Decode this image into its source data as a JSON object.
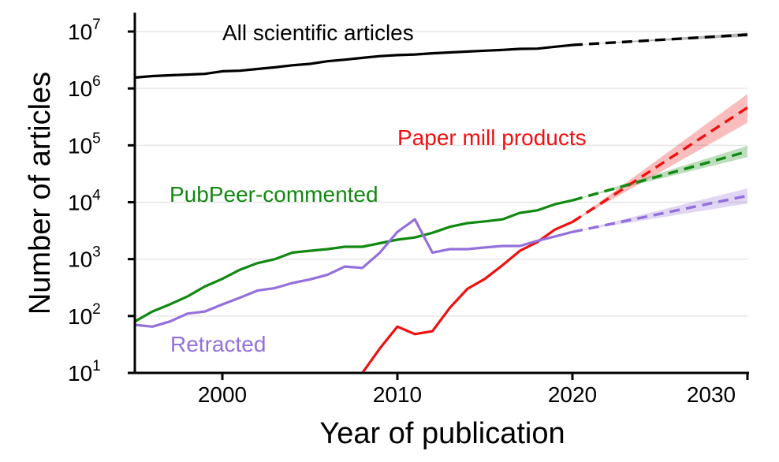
{
  "chart_data": {
    "type": "line",
    "xlabel": "Year of publication",
    "ylabel": "Number of articles",
    "xlim": [
      1995,
      2030
    ],
    "ylim_log10": [
      1,
      7
    ],
    "y_scale": "log",
    "x_ticks": [
      2000,
      2010,
      2020,
      2030
    ],
    "y_ticks": [
      {
        "value": 10,
        "base": "10",
        "exp": "1"
      },
      {
        "value": 100,
        "base": "10",
        "exp": "2"
      },
      {
        "value": 1000,
        "base": "10",
        "exp": "3"
      },
      {
        "value": 10000,
        "base": "10",
        "exp": "4"
      },
      {
        "value": 100000,
        "base": "10",
        "exp": "5"
      },
      {
        "value": 1000000,
        "base": "10",
        "exp": "6"
      },
      {
        "value": 10000000,
        "base": "10",
        "exp": "7"
      }
    ],
    "grid": "horizontal",
    "series": [
      {
        "name": "All scientific articles",
        "color": "#000000",
        "x": [
          1995,
          1996,
          1997,
          1998,
          1999,
          2000,
          2001,
          2002,
          2003,
          2004,
          2005,
          2006,
          2007,
          2008,
          2009,
          2010,
          2011,
          2012,
          2013,
          2014,
          2015,
          2016,
          2017,
          2018,
          2019,
          2020
        ],
        "y": [
          1550000,
          1650000,
          1700000,
          1750000,
          1800000,
          2000000,
          2050000,
          2200000,
          2350000,
          2550000,
          2700000,
          3000000,
          3200000,
          3450000,
          3700000,
          3850000,
          3950000,
          4150000,
          4300000,
          4450000,
          4600000,
          4750000,
          4950000,
          5000000,
          5400000,
          5800000
        ],
        "projection": {
          "x": [
            2020,
            2030
          ],
          "y": [
            5800000,
            8800000
          ],
          "lower": [
            5800000,
            8100000
          ],
          "upper": [
            5800000,
            9500000
          ]
        }
      },
      {
        "name": "Paper mill products",
        "color": "#ee1111",
        "x": [
          2008,
          2009,
          2010,
          2011,
          2012,
          2013,
          2014,
          2015,
          2016,
          2017,
          2018,
          2019,
          2020
        ],
        "y": [
          10,
          27,
          65,
          48,
          54,
          140,
          300,
          450,
          780,
          1400,
          2000,
          3300,
          4500
        ],
        "projection": {
          "x": [
            2020,
            2030
          ],
          "y": [
            4500,
            460000
          ],
          "lower": [
            4500,
            250000
          ],
          "upper": [
            4500,
            800000
          ]
        }
      },
      {
        "name": "PubPeer-commented",
        "color": "#118811",
        "x": [
          1995,
          1996,
          1997,
          1998,
          1999,
          2000,
          2001,
          2002,
          2003,
          2004,
          2005,
          2006,
          2007,
          2008,
          2009,
          2010,
          2011,
          2012,
          2013,
          2014,
          2015,
          2016,
          2017,
          2018,
          2019,
          2020
        ],
        "y": [
          80,
          120,
          160,
          220,
          330,
          450,
          650,
          850,
          1000,
          1300,
          1400,
          1500,
          1650,
          1650,
          1900,
          2200,
          2400,
          2900,
          3700,
          4300,
          4600,
          5000,
          6500,
          7200,
          9200,
          10800
        ],
        "projection": {
          "x": [
            2020,
            2030
          ],
          "y": [
            10800,
            78000
          ],
          "lower": [
            10800,
            62000
          ],
          "upper": [
            10800,
            98000
          ]
        }
      },
      {
        "name": "Retracted",
        "color": "#9370db",
        "x": [
          1995,
          1996,
          1997,
          1998,
          1999,
          2000,
          2001,
          2002,
          2003,
          2004,
          2005,
          2006,
          2007,
          2008,
          2009,
          2010,
          2011,
          2012,
          2013,
          2014,
          2015,
          2016,
          2017,
          2018,
          2019,
          2020
        ],
        "y": [
          70,
          65,
          80,
          110,
          120,
          160,
          210,
          280,
          310,
          380,
          440,
          530,
          740,
          700,
          1300,
          3000,
          5000,
          1300,
          1500,
          1500,
          1600,
          1700,
          1700,
          2100,
          2500,
          3000
        ],
        "projection": {
          "x": [
            2020,
            2030
          ],
          "y": [
            3000,
            13000
          ],
          "lower": [
            3000,
            9500
          ],
          "upper": [
            3000,
            17500
          ]
        }
      }
    ],
    "annotations": [
      {
        "text": "All scientific articles",
        "series": "All scientific articles"
      },
      {
        "text": "Paper mill products",
        "series": "Paper mill products"
      },
      {
        "text": "PubPeer-commented",
        "series": "PubPeer-commented"
      },
      {
        "text": "Retracted",
        "series": "Retracted"
      }
    ]
  }
}
